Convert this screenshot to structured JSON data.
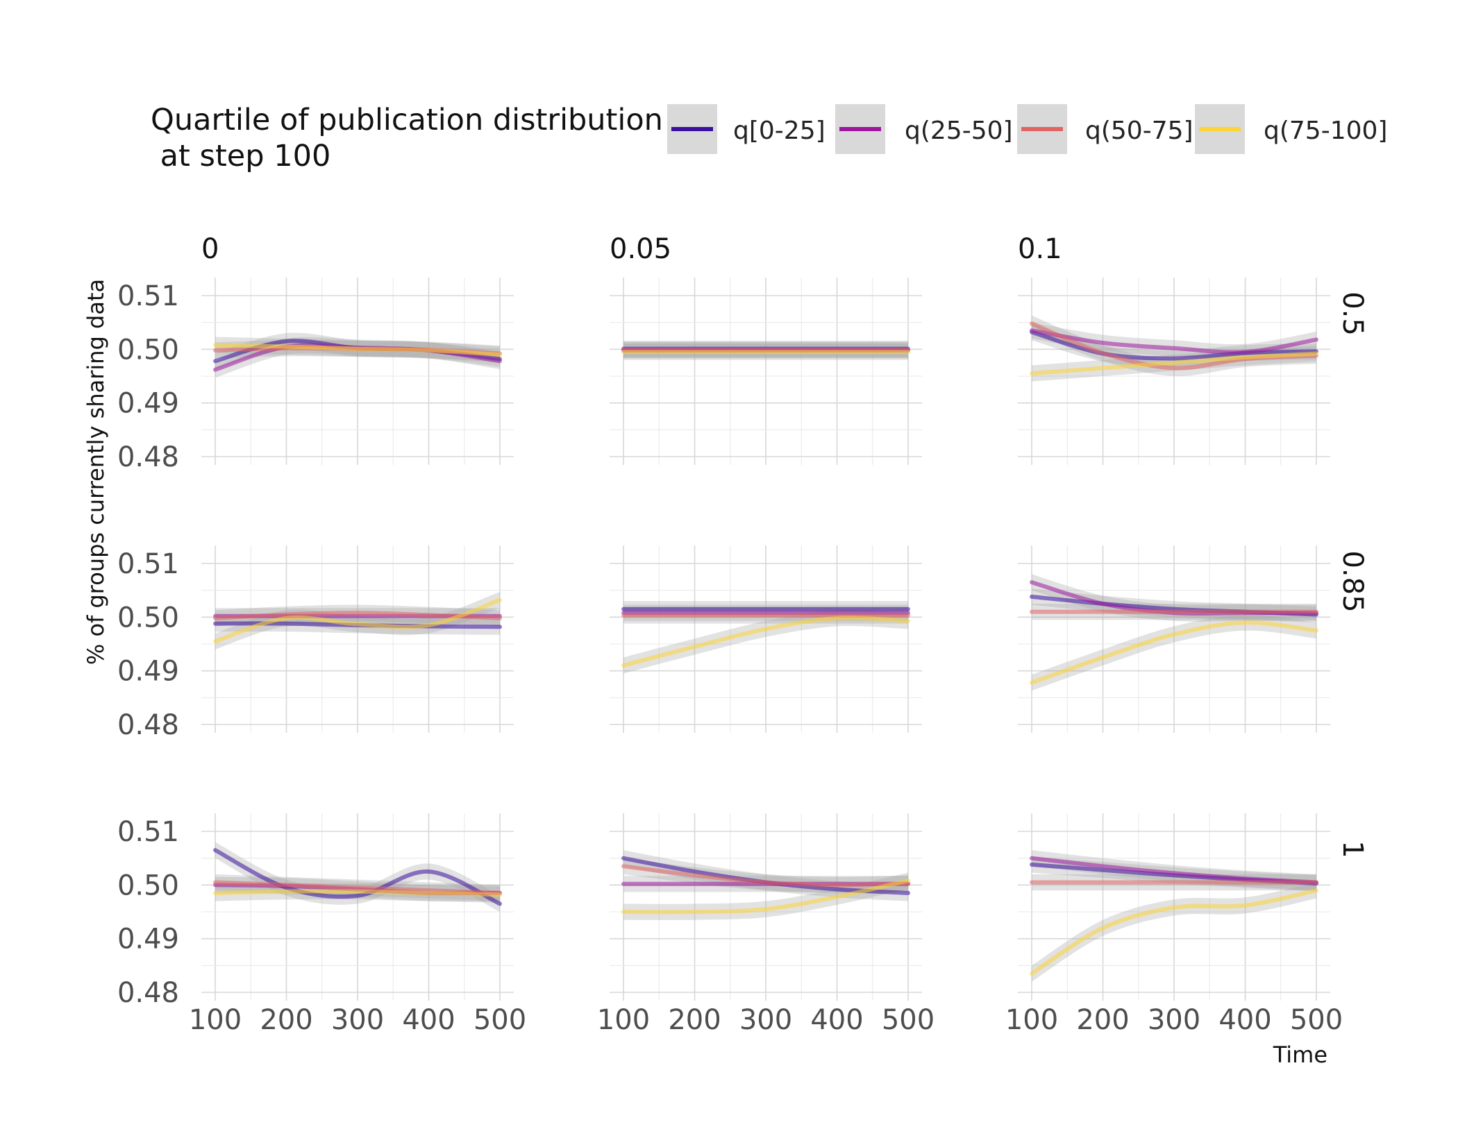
{
  "chart_data": {
    "type": "line",
    "layout": "facet-grid",
    "xlabel": "Time",
    "ylabel": "% of groups currently sharing data",
    "xlim": [
      100,
      500
    ],
    "ylim": [
      0.48,
      0.51
    ],
    "xticks": [
      "100",
      "200",
      "300",
      "400",
      "500"
    ],
    "yticks": [
      "0.48",
      "0.49",
      "0.50",
      "0.51"
    ],
    "grid": true,
    "legend": {
      "title": "Quartile of publication distribution\n at step 100",
      "placement": "top",
      "entries": [
        {
          "label": "q[0-25]",
          "color": "#3b0f9f"
        },
        {
          "label": "q(25-50]",
          "color": "#9c179e"
        },
        {
          "label": "q(50-75]",
          "color": "#e16462"
        },
        {
          "label": "q(75-100]",
          "color": "#fcd437"
        }
      ]
    },
    "col_facets": [
      "0",
      "0.05",
      "0.1"
    ],
    "row_facets": [
      "0.5",
      "0.85",
      "1"
    ],
    "x": [
      100,
      200,
      300,
      400,
      500
    ],
    "band_halfwidth": 0.0015,
    "panels": [
      {
        "col": "0",
        "row": "0.5",
        "series": [
          {
            "legend": "q[0-25]",
            "values": [
              0.4978,
              0.5015,
              0.5002,
              0.4998,
              0.4982
            ]
          },
          {
            "legend": "q(25-50]",
            "values": [
              0.4962,
              0.5005,
              0.5003,
              0.4998,
              0.4978
            ]
          },
          {
            "legend": "q(50-75]",
            "values": [
              0.4998,
              0.5002,
              0.5001,
              0.4999,
              0.4992
            ]
          },
          {
            "legend": "q(75-100]",
            "values": [
              0.5008,
              0.5005,
              0.5001,
              0.4998,
              0.499
            ]
          }
        ]
      },
      {
        "col": "0.05",
        "row": "0.5",
        "series": [
          {
            "legend": "q[0-25]",
            "values": [
              0.5001,
              0.5001,
              0.5001,
              0.5001,
              0.5001
            ]
          },
          {
            "legend": "q(25-50]",
            "values": [
              0.4998,
              0.4998,
              0.4998,
              0.4998,
              0.4998
            ]
          },
          {
            "legend": "q(50-75]",
            "values": [
              0.4999,
              0.4999,
              0.4999,
              0.4999,
              0.4999
            ]
          },
          {
            "legend": "q(75-100]",
            "values": [
              0.4995,
              0.4995,
              0.4995,
              0.4995,
              0.4995
            ]
          }
        ]
      },
      {
        "col": "0.1",
        "row": "0.5",
        "series": [
          {
            "legend": "q[0-25]",
            "values": [
              0.5032,
              0.4992,
              0.4983,
              0.4993,
              0.4996
            ]
          },
          {
            "legend": "q(25-50]",
            "values": [
              0.5035,
              0.5012,
              0.5002,
              0.4995,
              0.5018
            ]
          },
          {
            "legend": "q(50-75]",
            "values": [
              0.5048,
              0.4993,
              0.4965,
              0.4982,
              0.4988
            ]
          },
          {
            "legend": "q(75-100]",
            "values": [
              0.4955,
              0.4965,
              0.4975,
              0.4985,
              0.4992
            ]
          }
        ]
      },
      {
        "col": "0",
        "row": "0.85",
        "series": [
          {
            "legend": "q[0-25]",
            "values": [
              0.4988,
              0.4988,
              0.4985,
              0.4983,
              0.4982
            ]
          },
          {
            "legend": "q(25-50]",
            "values": [
              0.5002,
              0.5002,
              0.5002,
              0.5002,
              0.5002
            ]
          },
          {
            "legend": "q(50-75]",
            "values": [
              0.4998,
              0.5005,
              0.5008,
              0.5004,
              0.4998
            ]
          },
          {
            "legend": "q(75-100]",
            "values": [
              0.4955,
              0.4998,
              0.4987,
              0.4985,
              0.5032
            ]
          }
        ]
      },
      {
        "col": "0.05",
        "row": "0.85",
        "series": [
          {
            "legend": "q[0-25]",
            "values": [
              0.5015,
              0.5015,
              0.5015,
              0.5015,
              0.5015
            ]
          },
          {
            "legend": "q(25-50]",
            "values": [
              0.5008,
              0.5008,
              0.5008,
              0.5008,
              0.5008
            ]
          },
          {
            "legend": "q(50-75]",
            "values": [
              0.5003,
              0.5003,
              0.5003,
              0.5003,
              0.5003
            ]
          },
          {
            "legend": "q(75-100]",
            "values": [
              0.491,
              0.4945,
              0.4978,
              0.4998,
              0.4993
            ]
          }
        ]
      },
      {
        "col": "0.1",
        "row": "0.85",
        "series": [
          {
            "legend": "q[0-25]",
            "values": [
              0.5038,
              0.5025,
              0.5015,
              0.501,
              0.5005
            ]
          },
          {
            "legend": "q(25-50]",
            "values": [
              0.5065,
              0.5025,
              0.5008,
              0.5008,
              0.5008
            ]
          },
          {
            "legend": "q(50-75]",
            "values": [
              0.501,
              0.501,
              0.501,
              0.501,
              0.501
            ]
          },
          {
            "legend": "q(75-100]",
            "values": [
              0.4878,
              0.4925,
              0.4968,
              0.499,
              0.4975
            ]
          }
        ]
      },
      {
        "col": "0",
        "row": "1",
        "series": [
          {
            "legend": "q[0-25]",
            "values": [
              0.5065,
              0.4995,
              0.498,
              0.5025,
              0.4965
            ]
          },
          {
            "legend": "q(25-50]",
            "values": [
              0.5,
              0.4998,
              0.4992,
              0.4985,
              0.4985
            ]
          },
          {
            "legend": "q(50-75]",
            "values": [
              0.5005,
              0.5,
              0.4995,
              0.499,
              0.4985
            ]
          },
          {
            "legend": "q(75-100]",
            "values": [
              0.4985,
              0.4988,
              0.4988,
              0.4985,
              0.4982
            ]
          }
        ]
      },
      {
        "col": "0.05",
        "row": "1",
        "series": [
          {
            "legend": "q[0-25]",
            "values": [
              0.505,
              0.5025,
              0.5005,
              0.4992,
              0.4985
            ]
          },
          {
            "legend": "q(25-50]",
            "values": [
              0.5002,
              0.5002,
              0.5002,
              0.5002,
              0.5002
            ]
          },
          {
            "legend": "q(50-75]",
            "values": [
              0.5035,
              0.5018,
              0.5005,
              0.5,
              0.5003
            ]
          },
          {
            "legend": "q(75-100]",
            "values": [
              0.495,
              0.495,
              0.4955,
              0.4978,
              0.5008
            ]
          }
        ]
      },
      {
        "col": "0.1",
        "row": "1",
        "series": [
          {
            "legend": "q[0-25]",
            "values": [
              0.5038,
              0.5028,
              0.5018,
              0.501,
              0.5003
            ]
          },
          {
            "legend": "q(25-50]",
            "values": [
              0.505,
              0.5035,
              0.5022,
              0.5012,
              0.5005
            ]
          },
          {
            "legend": "q(50-75]",
            "values": [
              0.5005,
              0.5005,
              0.5005,
              0.5005,
              0.5005
            ]
          },
          {
            "legend": "q(75-100]",
            "values": [
              0.4835,
              0.492,
              0.4958,
              0.4962,
              0.499
            ]
          }
        ]
      }
    ]
  }
}
